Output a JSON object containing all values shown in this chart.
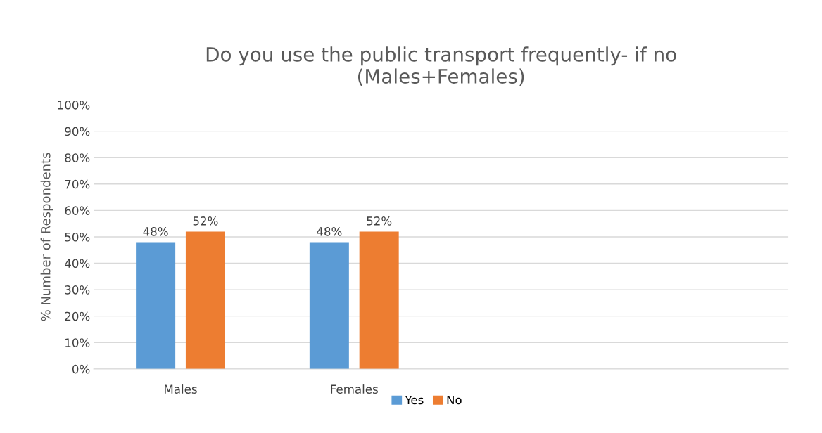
{
  "chart_data": {
    "type": "bar",
    "title": "Do you use the public transport frequently- if no\n(Males+Females)",
    "ylabel": "% Number of Respondents",
    "categories": [
      "Males",
      "Females",
      null,
      null
    ],
    "series": [
      {
        "name": "Yes",
        "color": "#5b9bd5",
        "values": [
          48,
          48,
          null,
          null
        ],
        "value_labels": [
          "48%",
          "48%",
          null,
          null
        ]
      },
      {
        "name": "No",
        "color": "#ed7d31",
        "values": [
          52,
          52,
          null,
          null
        ],
        "value_labels": [
          "52%",
          "52%",
          null,
          null
        ]
      }
    ],
    "ylim": [
      0,
      100
    ],
    "yticks": [
      {
        "value": 0,
        "label": "0%"
      },
      {
        "value": 10,
        "label": "10%"
      },
      {
        "value": 20,
        "label": "20%"
      },
      {
        "value": 30,
        "label": "30%"
      },
      {
        "value": 40,
        "label": "40%"
      },
      {
        "value": 50,
        "label": "50%"
      },
      {
        "value": 60,
        "label": "60%"
      },
      {
        "value": 70,
        "label": "70%"
      },
      {
        "value": 80,
        "label": "80%"
      },
      {
        "value": 90,
        "label": "90%"
      },
      {
        "value": 100,
        "label": "100%"
      }
    ],
    "grid": "y",
    "legend": "bottom"
  }
}
